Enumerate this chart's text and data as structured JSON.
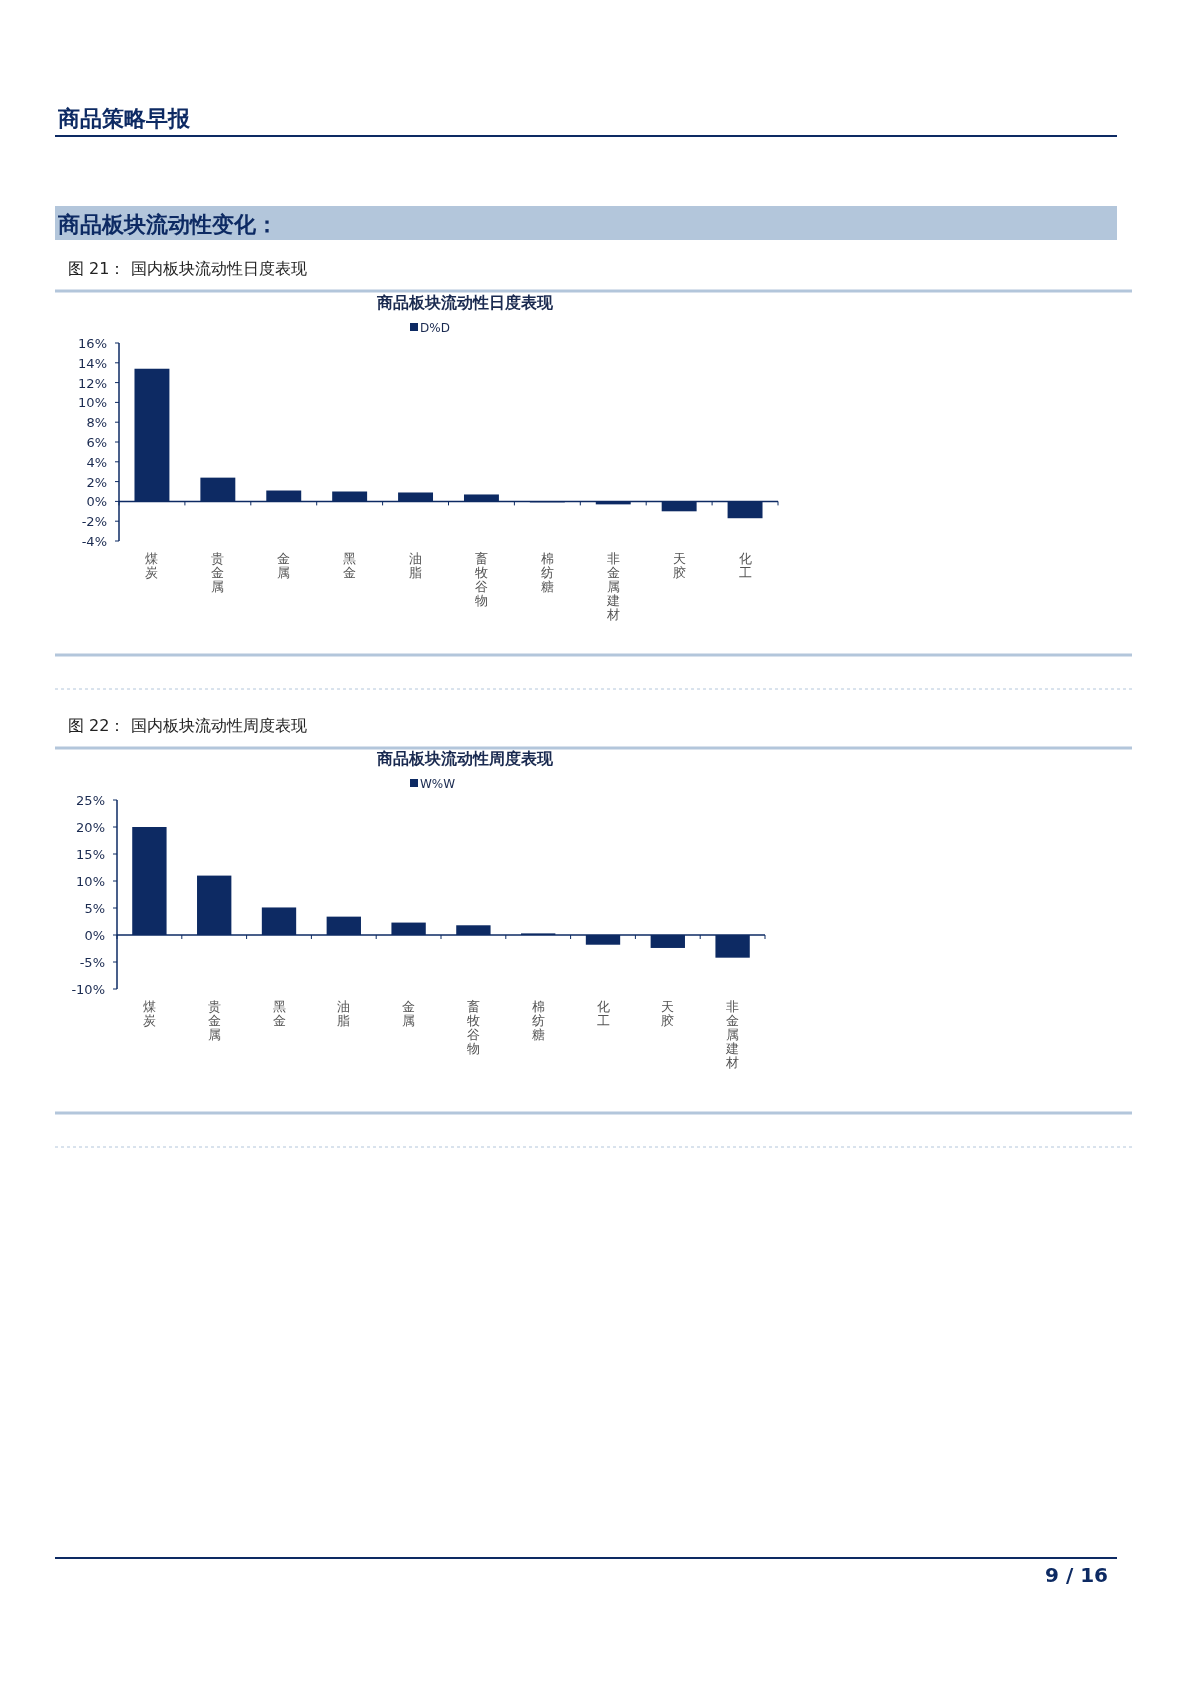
{
  "chart_data": [
    {
      "type": "bar",
      "title": "商品板块流动性日度表现",
      "subtitle": "图 21：  国内板块流动性日度表现",
      "annotations": [
        "商品策略早报",
        "商品板块流动性变化："
      ],
      "categories": [
        "煤炭",
        "贵金属",
        "金属",
        "黑金",
        "油脂",
        "畜牧谷物",
        "棉纺糖",
        "非金属建材",
        "天胶",
        "化工"
      ],
      "series": [
        {
          "name": "D%D",
          "color": "#0d2a63",
          "values": [
            13.4,
            2.4,
            1.1,
            1.0,
            0.9,
            0.7,
            -0.1,
            -0.3,
            -1.0,
            -1.7
          ]
        }
      ],
      "ylim": [
        -4,
        16
      ],
      "yticks": [
        {
          "value": -4,
          "label": "-4%"
        },
        {
          "value": -2,
          "label": "-2%"
        },
        {
          "value": 0,
          "label": "0%"
        },
        {
          "value": 2,
          "label": "2%"
        },
        {
          "value": 4,
          "label": "4%"
        },
        {
          "value": 6,
          "label": "6%"
        },
        {
          "value": 8,
          "label": "8%"
        },
        {
          "value": 10,
          "label": "10%"
        },
        {
          "value": 12,
          "label": "12%"
        },
        {
          "value": 14,
          "label": "14%"
        },
        {
          "value": 16,
          "label": "16%"
        }
      ],
      "legend": "top"
    },
    {
      "type": "bar",
      "title": "商品板块流动性周度表现",
      "subtitle": "图 22：  国内板块流动性周度表现",
      "annotations": [
        "9 / 16"
      ],
      "categories": [
        "煤炭",
        "贵金属",
        "黑金",
        "油脂",
        "金属",
        "畜牧谷物",
        "棉纺糖",
        "化工",
        "天胶",
        "非金属建材"
      ],
      "series": [
        {
          "name": "W%W",
          "color": "#0d2a63",
          "values": [
            20.0,
            11.0,
            5.1,
            3.4,
            2.3,
            1.8,
            0.3,
            -1.8,
            -2.4,
            -4.2
          ]
        }
      ],
      "ylim": [
        -10,
        25
      ],
      "yticks": [
        {
          "value": -10,
          "label": "-10%"
        },
        {
          "value": -5,
          "label": "-5%"
        },
        {
          "value": 0,
          "label": "0%"
        },
        {
          "value": 5,
          "label": "5%"
        },
        {
          "value": 10,
          "label": "10%"
        },
        {
          "value": 15,
          "label": "15%"
        },
        {
          "value": 20,
          "label": "20%"
        },
        {
          "value": 25,
          "label": "25%"
        }
      ],
      "legend": "top"
    }
  ]
}
